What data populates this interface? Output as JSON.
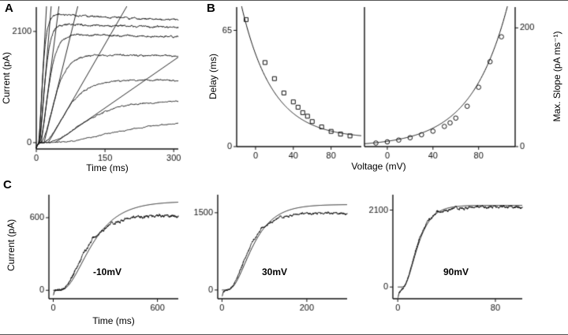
{
  "figure": {
    "panels": {
      "A": {
        "label": "A",
        "ylabel": "Current (pA)",
        "xlabel": "Time (ms)"
      },
      "B": {
        "label": "B",
        "ylabel_left": "Delay (ms)",
        "ylabel_right": "Max. Slope (pA ms⁻¹)",
        "xlabel": "Voltage (mV)"
      },
      "C": {
        "label": "C",
        "ylabel": "Current (pA)",
        "xlabel": "Time (ms)",
        "trace_labels": [
          "-10mV",
          "30mV",
          "90mV"
        ]
      }
    }
  },
  "chart_data": [
    {
      "id": "panelA",
      "type": "line",
      "title": "Current family evoked by voltage steps with maximal-slope tangent lines",
      "xlabel": "Time (ms)",
      "ylabel": "Current (pA)",
      "xlim": [
        0,
        310
      ],
      "ylim": [
        -120,
        2560
      ],
      "xticks": [
        0,
        150,
        300
      ],
      "yticks": [
        0,
        2100
      ],
      "axes": [
        "left",
        "bottom"
      ],
      "yside": "left",
      "traces": [
        {
          "amp": 2450,
          "delay": 2,
          "tau": 6.5,
          "pow": 4,
          "sag": 0.09,
          "sagTau": 350,
          "noise": 16,
          "spike": -100,
          "spikeTau": 3
        },
        {
          "amp": 2260,
          "delay": 2,
          "tau": 9,
          "pow": 4,
          "sag": 0.06,
          "sagTau": 350,
          "noise": 15,
          "spike": -100,
          "spikeTau": 3
        },
        {
          "amp": 2060,
          "delay": 3,
          "tau": 13,
          "pow": 4,
          "sag": 0.05,
          "sagTau": 350,
          "noise": 14,
          "spike": -100,
          "spikeTau": 3
        },
        {
          "amp": 1680,
          "delay": 4,
          "tau": 20,
          "pow": 4,
          "sag": 0.04,
          "sagTau": 350,
          "noise": 13,
          "spike": -100,
          "spikeTau": 3
        },
        {
          "amp": 1200,
          "delay": 5,
          "tau": 33,
          "pow": 4,
          "sag": 0.03,
          "sagTau": 350,
          "noise": 11,
          "spike": -100,
          "spikeTau": 3
        },
        {
          "amp": 800,
          "delay": 6,
          "tau": 55,
          "pow": 4,
          "sag": 0.02,
          "sagTau": 350,
          "noise": 10,
          "spike": -100,
          "spikeTau": 3
        },
        {
          "amp": 430,
          "delay": 8,
          "tau": 95,
          "pow": 4,
          "sag": 0,
          "sagTau": 350,
          "noise": 8,
          "spike": -100,
          "spikeTau": 3
        }
      ],
      "slope_lines": [
        {
          "x0": 6,
          "slope": 158
        },
        {
          "x0": 8,
          "slope": 105
        },
        {
          "x0": 11,
          "slope": 67
        },
        {
          "x0": 17,
          "slope": 35
        },
        {
          "x0": 26,
          "slope": 15
        },
        {
          "x0": 41,
          "slope": 6
        }
      ]
    },
    {
      "id": "panelB_left",
      "type": "scatter",
      "marker": "square",
      "title": "Delay of current onset vs voltage",
      "xlabel": "Voltage (mV)",
      "ylabel": "Delay (ms)",
      "xlim": [
        -20,
        112
      ],
      "ylim": [
        0,
        78
      ],
      "xticks": [
        0,
        40,
        80
      ],
      "yticks": [
        0,
        65
      ],
      "axes": [
        "left",
        "bottom"
      ],
      "yside": "left",
      "points": [
        [
          -10,
          71
        ],
        [
          10,
          47
        ],
        [
          20,
          38
        ],
        [
          30,
          30
        ],
        [
          40,
          25
        ],
        [
          45,
          22
        ],
        [
          50,
          19
        ],
        [
          55,
          17
        ],
        [
          60,
          14
        ],
        [
          70,
          11
        ],
        [
          80,
          8.5
        ],
        [
          90,
          7
        ],
        [
          100,
          6
        ]
      ],
      "fit": {
        "type": "exp_decay",
        "y0": 4.5,
        "a": 64,
        "v0": -10,
        "tau": 33
      }
    },
    {
      "id": "panelB_right",
      "type": "scatter",
      "marker": "circle",
      "title": "Maximal slope of current rise vs voltage",
      "xlabel": "Voltage (mV)",
      "ylabel": "Max. Slope (pA ms⁻¹)",
      "xlim": [
        -20,
        112
      ],
      "ylim": [
        0,
        235
      ],
      "xticks": [
        0,
        40,
        80
      ],
      "yticks": [
        0,
        200
      ],
      "axes": [
        "left",
        "bottom",
        "right"
      ],
      "yside": "right",
      "points": [
        [
          -10,
          6
        ],
        [
          0,
          8
        ],
        [
          10,
          11
        ],
        [
          20,
          15
        ],
        [
          30,
          20
        ],
        [
          40,
          26
        ],
        [
          50,
          34
        ],
        [
          55,
          40
        ],
        [
          60,
          48
        ],
        [
          70,
          68
        ],
        [
          80,
          100
        ],
        [
          90,
          143
        ],
        [
          100,
          185
        ]
      ],
      "fit": {
        "type": "exp_growth",
        "y0": 0,
        "a": 9,
        "v0": 0,
        "tau": 32.2
      }
    },
    {
      "id": "panelC1",
      "type": "line",
      "label": "-10mV",
      "title": "Current at -10 mV with sigmoidal fit",
      "xlabel": "Time (ms)",
      "ylabel": "Current (pA)",
      "xlim": [
        -25,
        720
      ],
      "ylim": [
        -70,
        790
      ],
      "xticks": [
        0,
        600
      ],
      "yticks": [
        0,
        600
      ],
      "axes": [
        "left",
        "bottom"
      ],
      "yside": "left",
      "trace": {
        "amp": 640,
        "delay": 30,
        "tau": 95,
        "pow": 3,
        "sag": 0.05,
        "sagTau": 500,
        "noise": 13,
        "spike": -45,
        "spikeTau": 6
      },
      "fit_trace": {
        "amp": 735,
        "delay": 30,
        "tau": 120,
        "pow": 3
      }
    },
    {
      "id": "panelC2",
      "type": "line",
      "label": "30mV",
      "title": "Current at 30 mV with sigmoidal fit",
      "xlabel": "Time (ms)",
      "ylabel": "Current (pA)",
      "xlim": [
        -10,
        295
      ],
      "ylim": [
        -170,
        1850
      ],
      "xticks": [
        0,
        200
      ],
      "yticks": [
        0,
        1500
      ],
      "axes": [
        "left",
        "bottom"
      ],
      "yside": "left",
      "trace": {
        "amp": 1540,
        "delay": 10,
        "tau": 33,
        "pow": 3,
        "sag": 0.05,
        "sagTau": 250,
        "noise": 24,
        "spike": -130,
        "spikeTau": 4
      },
      "fit_trace": {
        "amp": 1660,
        "delay": 10,
        "tau": 39,
        "pow": 3
      }
    },
    {
      "id": "panelC3",
      "type": "line",
      "label": "90mV",
      "title": "Current at 90 mV with sigmoidal fit",
      "xlabel": "Time (ms)",
      "ylabel": "Current (pA)",
      "xlim": [
        -4,
        102
      ],
      "ylim": [
        -320,
        2520
      ],
      "xticks": [
        0,
        80
      ],
      "yticks": [
        0,
        2100
      ],
      "axes": [
        "left",
        "bottom"
      ],
      "yside": "left",
      "trace": {
        "amp": 2200,
        "delay": 3,
        "tau": 8,
        "pow": 3,
        "sag": 0.02,
        "sagTau": 200,
        "noise": 40,
        "spike": -300,
        "spikeTau": 2.5
      },
      "fit_trace": {
        "amp": 2230,
        "delay": 3,
        "tau": 8.5,
        "pow": 3
      }
    }
  ]
}
